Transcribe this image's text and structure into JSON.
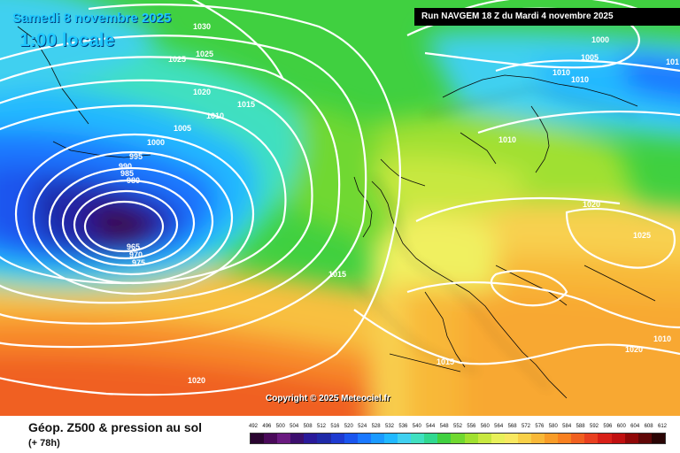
{
  "map": {
    "valid_date": "Samedi 8 novembre 2025",
    "valid_time": "1:00 locale",
    "run_info": "Run NAVGEM 18 Z du Mardi 4 novembre 2025",
    "copyright": "Copyright © 2025 Meteociel.fr",
    "isobar_labels": [
      "1030",
      "1025",
      "1025",
      "1020",
      "1015",
      "1010",
      "1005",
      "1000",
      "995",
      "990",
      "985",
      "980",
      "965",
      "970",
      "975",
      "1015",
      "1020",
      "1000",
      "1005",
      "1010",
      "1010",
      "1010",
      "1010",
      "1020",
      "1025",
      "1015",
      "1020",
      "1020",
      "101"
    ],
    "low_center_color": "#3a0f48",
    "isobar_color": "#ffffff"
  },
  "footer": {
    "title": "Géop. Z500 & pression au sol",
    "forecast_hour": "(+ 78h)"
  },
  "scale": {
    "values": [
      "492",
      "496",
      "500",
      "504",
      "508",
      "512",
      "516",
      "520",
      "524",
      "528",
      "532",
      "536",
      "540",
      "544",
      "548",
      "552",
      "556",
      "560",
      "564",
      "568",
      "572",
      "576",
      "580",
      "584",
      "588",
      "592",
      "596",
      "600",
      "604",
      "608",
      "612"
    ],
    "colors": [
      "#2a0530",
      "#4a0a5a",
      "#6a1a80",
      "#3c0f6e",
      "#2a1a9a",
      "#1f2aa8",
      "#1e3ad0",
      "#1a55ee",
      "#1a78ff",
      "#1a9aff",
      "#20b8ff",
      "#40d0f0",
      "#40e0c0",
      "#30d890",
      "#40d040",
      "#70d830",
      "#a0e030",
      "#c8e840",
      "#e8f05a",
      "#f8e860",
      "#f8d048",
      "#f8b838",
      "#f89c28",
      "#f88020",
      "#f06020",
      "#e84020",
      "#d82018",
      "#c01010",
      "#900808",
      "#600808",
      "#2a0505"
    ]
  }
}
